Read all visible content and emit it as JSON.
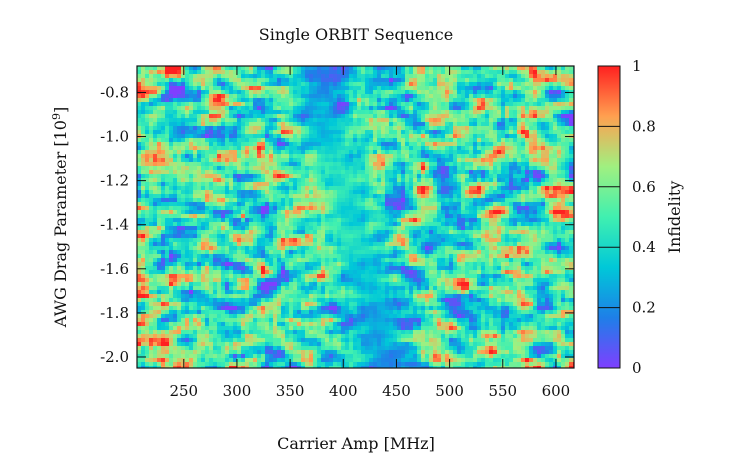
{
  "chart_data": {
    "type": "heatmap",
    "title": "Single ORBIT Sequence",
    "xlabel": "Carrier Amp [MHz]",
    "ylabel": "AWG Drag Parameter [10",
    "ylabel_sup": "9",
    "ylabel_end": "]",
    "xlim": [
      206,
      617
    ],
    "ylim": [
      -2.05,
      -0.68
    ],
    "xticks": [
      250,
      300,
      350,
      400,
      450,
      500,
      550,
      600
    ],
    "yticks": [
      -0.8,
      -1.0,
      -1.2,
      -1.4,
      -1.6,
      -1.8,
      -2.0
    ],
    "ytick_labels": [
      "-0.8",
      "-1.0",
      "-1.2",
      "-1.4",
      "-1.6",
      "-1.8",
      "-2.0"
    ],
    "colorbar": {
      "label": "Infidelity",
      "range": [
        0,
        1
      ],
      "ticks": [
        0,
        0.2,
        0.4,
        0.6,
        0.8,
        1
      ],
      "tick_labels": [
        "0",
        "0.2",
        "0.4",
        "0.6",
        "0.8",
        "1"
      ],
      "colormap": "rainbow",
      "colors": [
        "#7f3fff",
        "#1e7fe8",
        "#00c8d8",
        "#40f0b0",
        "#a0f080",
        "#ffa050",
        "#ff2020"
      ]
    },
    "valley_min_infidelity_path": [
      {
        "y": -0.8,
        "x": 375
      },
      {
        "y": -1.4,
        "x": 410
      },
      {
        "y": -2.0,
        "x": 440
      }
    ],
    "background_infidelity": 0.5
  }
}
